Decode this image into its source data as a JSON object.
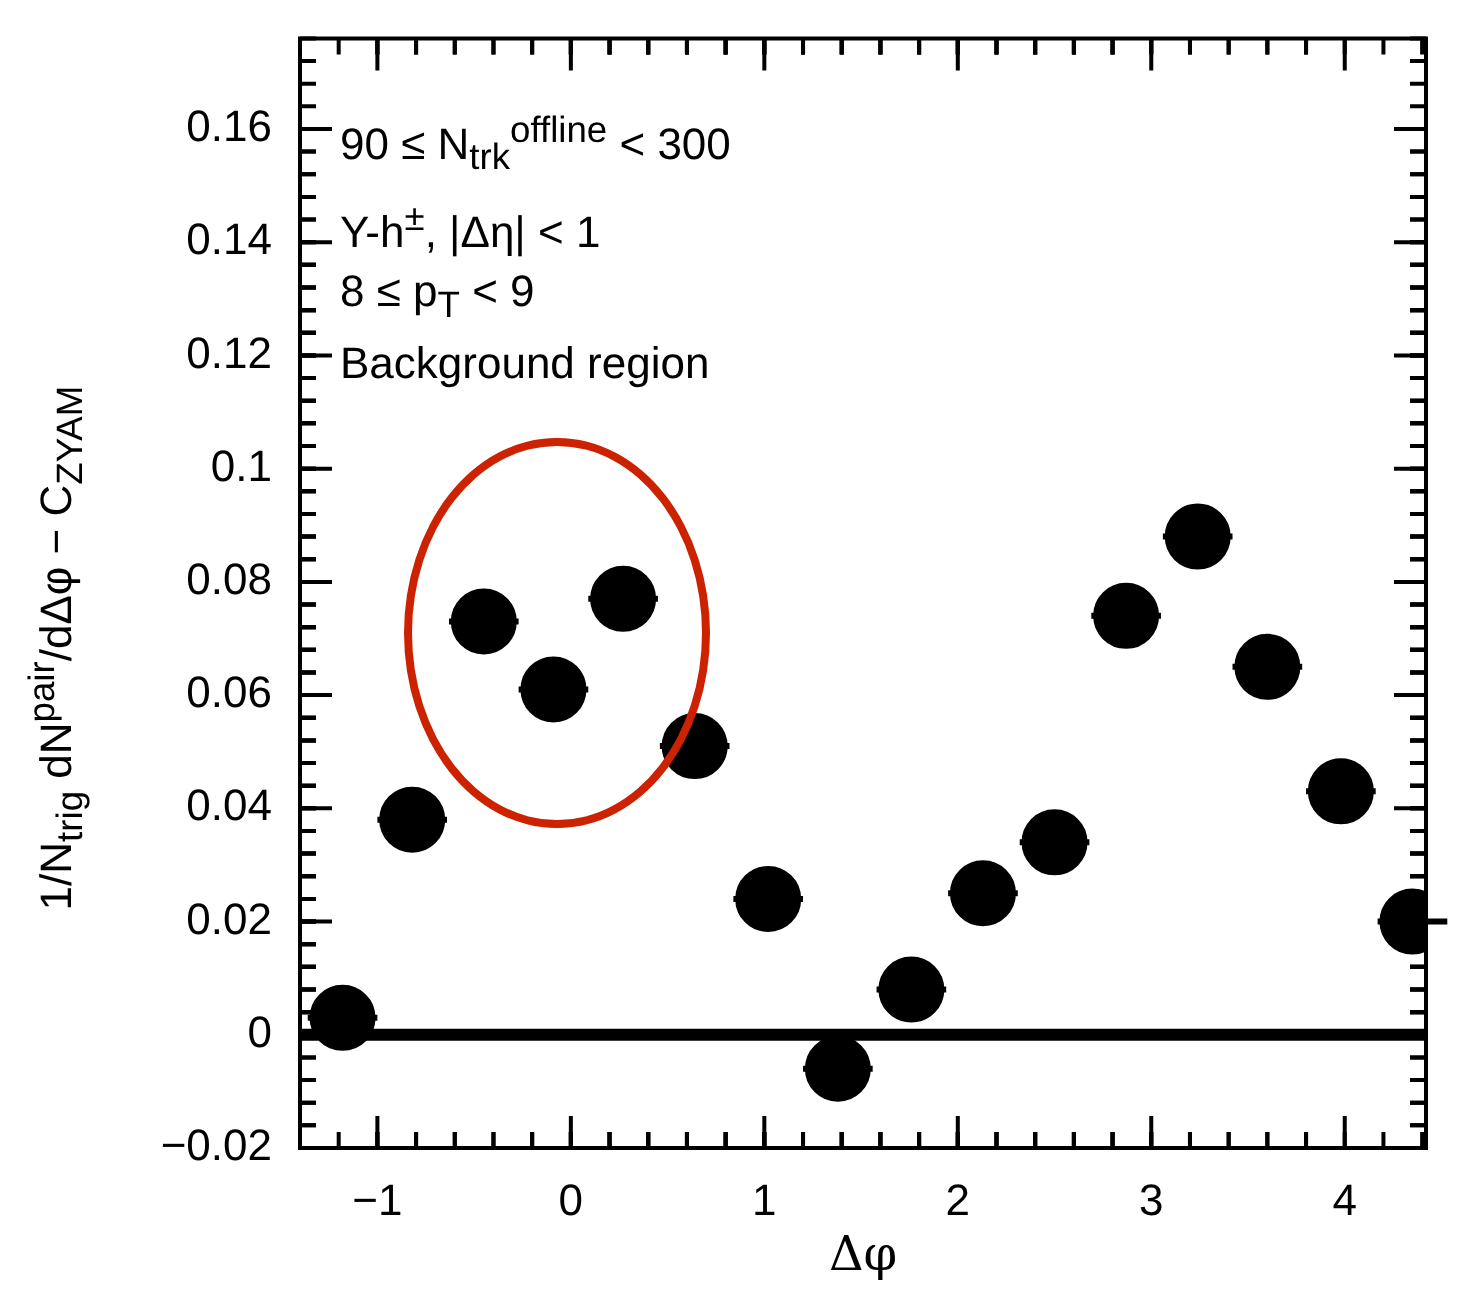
{
  "chart_data": {
    "type": "scatter",
    "xlabel": "Δφ",
    "ylabel": "1/N$_{trig}$ dN$^{pair}$/dΔφ − C$_{ZYAM}$",
    "annotations": [
      "90 ≤ N$_{trk}$$^{offline}$ < 300",
      "Υ-h$^{±}$, |Δη| < 1",
      "8 ≤ p$_{T}$ < 9",
      "Background region"
    ],
    "x": [
      -1.18,
      -0.82,
      -0.45,
      -0.09,
      0.27,
      0.64,
      1.02,
      1.38,
      1.76,
      2.13,
      2.5,
      2.87,
      3.24,
      3.6,
      3.98,
      4.35
    ],
    "series": [
      {
        "color": "#000000",
        "values": [
          0.003,
          0.038,
          0.073,
          0.061,
          0.077,
          0.051,
          0.024,
          -0.006,
          0.008,
          0.025,
          0.034,
          0.074,
          0.088,
          0.065,
          0.043,
          0.02
        ],
        "xerrors": [
          0.18,
          0.18,
          0.18,
          0.18,
          0.18,
          0.18,
          0.18,
          0.18,
          0.18,
          0.18,
          0.18,
          0.18,
          0.18,
          0.18,
          0.18,
          0.18
        ]
      }
    ],
    "xlim": [
      -1.4,
      4.42
    ],
    "xticks": [
      -1,
      0,
      1,
      2,
      3,
      4
    ],
    "ylim": [
      -0.02,
      0.176
    ],
    "yticks": [
      -0.02,
      0,
      0.02,
      0.04,
      0.06,
      0.08,
      0.1,
      0.12,
      0.14,
      0.16
    ],
    "ref_lines": [
      {
        "axis": "y",
        "value": 0,
        "color": "#000000"
      }
    ],
    "marker": "circle",
    "grid": false,
    "legend": false
  }
}
